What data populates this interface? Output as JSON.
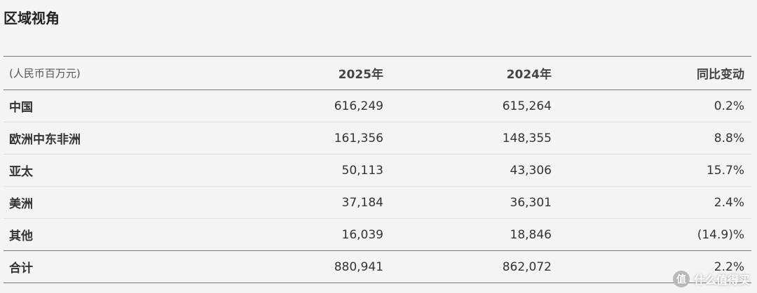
{
  "header": {
    "title": "区域视角"
  },
  "table": {
    "columns": [
      "(人民币百万元)",
      "2025年",
      "2024年",
      "同比变动"
    ],
    "rows": [
      [
        "中国",
        "616,249",
        "615,264",
        "0.2%"
      ],
      [
        "欧洲中东非洲",
        "161,356",
        "148,355",
        "8.8%"
      ],
      [
        "亚太",
        "50,113",
        "43,306",
        "15.7%"
      ],
      [
        "美洲",
        "37,184",
        "36,301",
        "2.4%"
      ],
      [
        "其他",
        "16,039",
        "18,846",
        "(14.9)%"
      ]
    ],
    "total": [
      "合计",
      "880,941",
      "862,072",
      "2.2%"
    ]
  },
  "watermark": {
    "icon": "值",
    "text": "什么值得买"
  }
}
